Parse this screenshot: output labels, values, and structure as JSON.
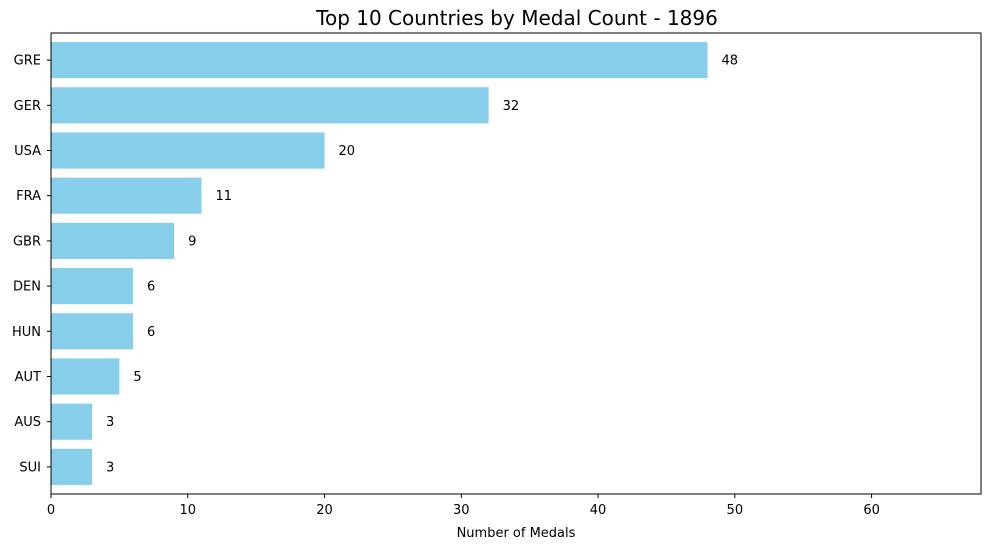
{
  "chart_data": {
    "type": "bar",
    "orientation": "horizontal",
    "title": "Top 10 Countries by Medal Count - 1896",
    "xlabel": "Number of Medals",
    "ylabel": "",
    "categories": [
      "GRE",
      "GER",
      "USA",
      "FRA",
      "GBR",
      "DEN",
      "HUN",
      "AUT",
      "AUS",
      "SUI"
    ],
    "values": [
      48,
      32,
      20,
      11,
      9,
      6,
      6,
      5,
      3,
      3
    ],
    "xlim": [
      0,
      68
    ],
    "xticks": [
      0,
      10,
      20,
      30,
      40,
      50,
      60
    ],
    "bar_color": "#87CEEB",
    "grid": false,
    "data_labels": true
  }
}
